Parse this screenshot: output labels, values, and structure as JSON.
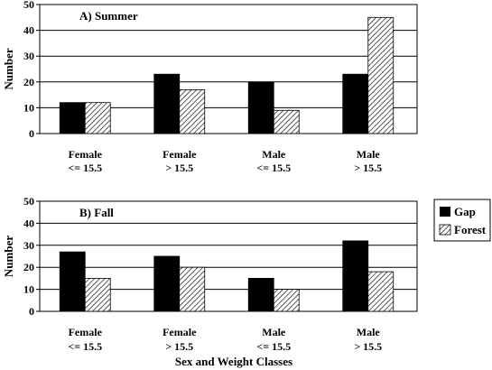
{
  "colors": {
    "gap": "#000000",
    "forest": "hatched-diagonal",
    "background": "#ffffff"
  },
  "legend": {
    "position": "right",
    "entries": [
      "Gap",
      "Forest"
    ]
  },
  "xlabel": "Sex and Weight Classes",
  "chart_data": [
    {
      "type": "bar",
      "title": "A) Summer",
      "ylabel": "Number",
      "ylim": [
        0,
        50
      ],
      "yticks": [
        0,
        10,
        20,
        30,
        40,
        50
      ],
      "grid": "horizontal",
      "categories": [
        {
          "line1": "Female",
          "line2": "<= 15.5"
        },
        {
          "line1": "Female",
          "line2": "> 15.5"
        },
        {
          "line1": "Male",
          "line2": "<= 15.5"
        },
        {
          "line1": "Male",
          "line2": "> 15.5"
        }
      ],
      "series": [
        {
          "name": "Gap",
          "values": [
            12,
            23,
            20,
            23
          ]
        },
        {
          "name": "Forest",
          "values": [
            12,
            17,
            9,
            45
          ]
        }
      ]
    },
    {
      "type": "bar",
      "title": "B) Fall",
      "ylabel": "Number",
      "xlabel": "Sex and Weight Classes",
      "ylim": [
        0,
        50
      ],
      "yticks": [
        0,
        10,
        20,
        30,
        40,
        50
      ],
      "grid": "horizontal",
      "categories": [
        {
          "line1": "Female",
          "line2": "<= 15.5"
        },
        {
          "line1": "Female",
          "line2": "> 15.5"
        },
        {
          "line1": "Male",
          "line2": "<= 15.5"
        },
        {
          "line1": "Male",
          "line2": "> 15.5"
        }
      ],
      "series": [
        {
          "name": "Gap",
          "values": [
            27,
            25,
            15,
            32
          ]
        },
        {
          "name": "Forest",
          "values": [
            15,
            20,
            10,
            18
          ]
        }
      ]
    }
  ]
}
